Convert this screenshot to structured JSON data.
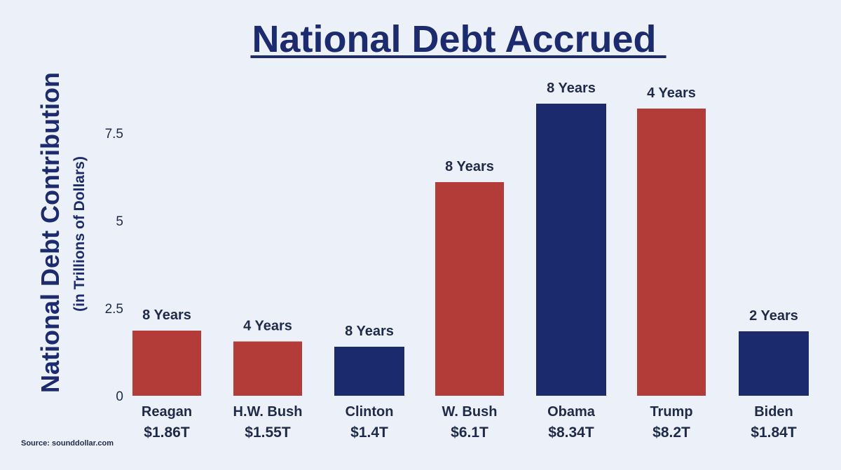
{
  "chart_data": {
    "type": "bar",
    "title": "National Debt Accrued",
    "ylabel": "National Debt Contribution",
    "ylabel_sub": "(in Trillions of Dollars)",
    "ylim": [
      0,
      8.9
    ],
    "yticks": [
      {
        "value": 0,
        "label": "0"
      },
      {
        "value": 2.5,
        "label": "2.5"
      },
      {
        "value": 5,
        "label": "5"
      },
      {
        "value": 7.5,
        "label": "7.5"
      }
    ],
    "categories": [
      "Reagan",
      "H.W. Bush",
      "Clinton",
      "W. Bush",
      "Obama",
      "Trump",
      "Biden"
    ],
    "values": [
      1.86,
      1.55,
      1.4,
      6.1,
      8.34,
      8.2,
      1.84
    ],
    "value_labels": [
      "$1.86T",
      "$1.55T",
      "$1.4T",
      "$6.1T",
      "$8.34T",
      "$8.2T",
      "$1.84T"
    ],
    "terms": [
      "8 Years",
      "4 Years",
      "8 Years",
      "8 Years",
      "8 Years",
      "4 Years",
      "2 Years"
    ],
    "party": [
      "republican",
      "republican",
      "democrat",
      "republican",
      "democrat",
      "republican",
      "democrat"
    ],
    "colors": {
      "republican": "#b33c38",
      "democrat": "#1b2a6d"
    },
    "grid": false,
    "legend": "none",
    "source": "Source: sounddollar.com"
  }
}
